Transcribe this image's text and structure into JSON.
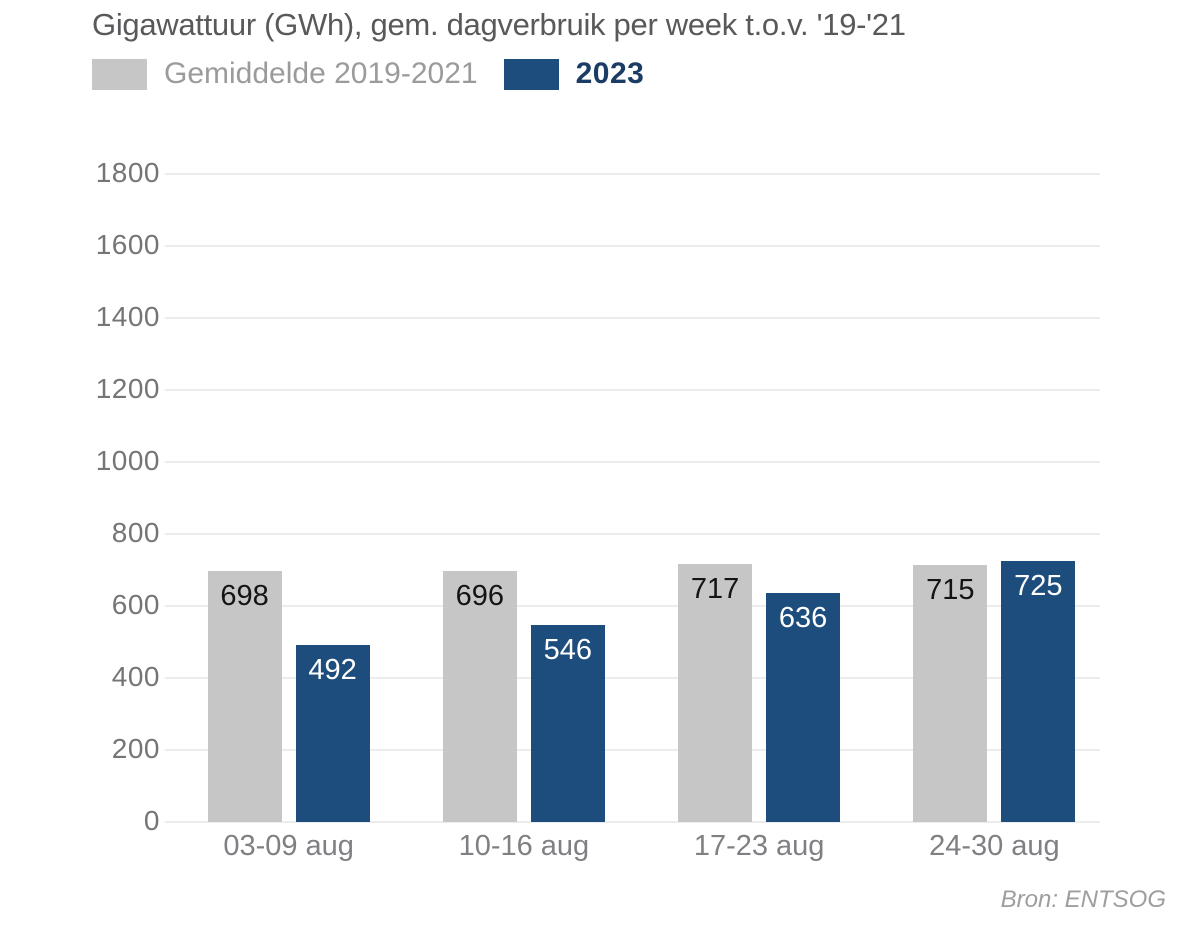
{
  "chart_data": {
    "type": "bar",
    "title": "Gigawattuur (GWh), gem. dagverbruik per week t.o.v. '19-'21",
    "categories": [
      "03-09 aug",
      "10-16 aug",
      "17-23 aug",
      "24-30 aug"
    ],
    "series": [
      {
        "name": "Gemiddelde 2019-2021",
        "values": [
          698,
          696,
          717,
          715
        ],
        "color": "#c6c6c6",
        "value_label_color": "#141414"
      },
      {
        "name": "2023",
        "values": [
          492,
          546,
          636,
          725
        ],
        "color": "#1d4d7c",
        "value_label_color": "#ffffff"
      }
    ],
    "xlabel": "",
    "ylabel": "",
    "ylim": [
      0,
      1800
    ],
    "yticks": [
      0,
      200,
      400,
      600,
      800,
      1000,
      1200,
      1400,
      1600,
      1800
    ],
    "grid": "horizontal",
    "legend_position": "top-left",
    "value_labels": "inside-top",
    "source": "Bron: ENTSOG"
  },
  "colors": {
    "background": "#ffffff",
    "title_text": "#58595b",
    "legend_gray_text": "#9b9b9b",
    "legend_blue_text": "#1b3c64",
    "bar_gray": "#c6c6c6",
    "bar_blue": "#1d4d7c",
    "axis_text": "#757575",
    "xaxis_text": "#7f8083",
    "grid_line": "#ececec",
    "source_text": "#9e9e9e"
  }
}
